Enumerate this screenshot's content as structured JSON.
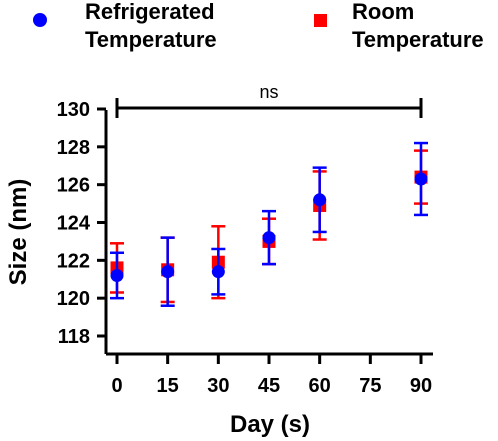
{
  "chart_data": {
    "type": "scatter",
    "title": "",
    "xlabel": "Day (s)",
    "ylabel": "Size (nm)",
    "x_ticks": [
      0,
      15,
      30,
      45,
      60,
      75,
      90
    ],
    "x_tick_labels": [
      "0",
      "15",
      "30",
      "45",
      "60",
      "75",
      "90"
    ],
    "xlim": [
      0,
      110
    ],
    "y_ticks": [
      118,
      120,
      122,
      124,
      126,
      128,
      130
    ],
    "y_tick_labels": [
      "118",
      "120",
      "122",
      "124",
      "126",
      "128",
      "130"
    ],
    "ylim": [
      118,
      130
    ],
    "grid": false,
    "legend_position": "top",
    "annotation": {
      "text": "ns",
      "from_x": 0,
      "to_x": 90
    },
    "series": [
      {
        "name": "Refrigerated Temperature",
        "marker": "circle",
        "color": "#0000ff",
        "x": [
          0,
          15,
          30,
          45,
          60,
          90
        ],
        "y": [
          121.2,
          121.4,
          121.4,
          123.2,
          125.2,
          126.3
        ],
        "err": [
          1.2,
          1.8,
          1.2,
          1.4,
          1.7,
          1.9
        ]
      },
      {
        "name": "Room Temperature",
        "marker": "square",
        "color": "#ff0000",
        "x": [
          0,
          15,
          30,
          45,
          60,
          90
        ],
        "y": [
          121.6,
          121.5,
          121.9,
          123.0,
          124.9,
          126.4
        ],
        "err": [
          1.3,
          1.7,
          1.9,
          1.2,
          1.8,
          1.4
        ]
      }
    ]
  }
}
